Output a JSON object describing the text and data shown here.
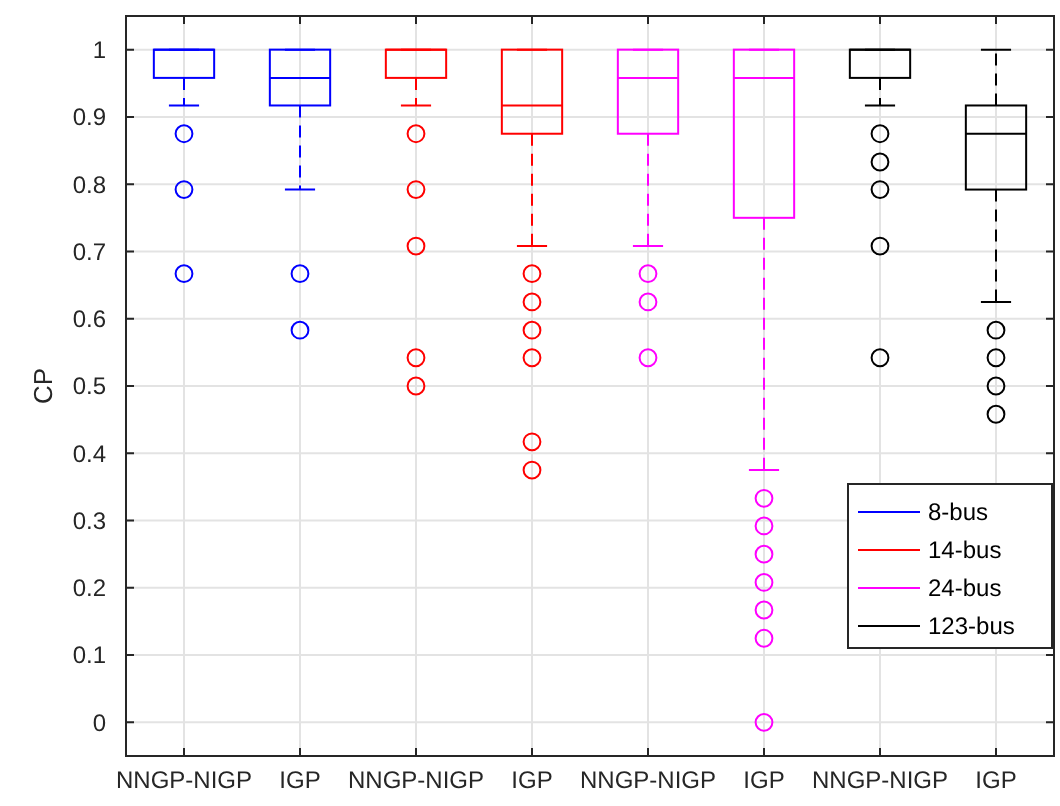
{
  "chart_data": {
    "type": "box",
    "ylabel": "CP",
    "categories": [
      "NNGP-NIGP",
      "IGP",
      "NNGP-NIGP",
      "IGP",
      "NNGP-NIGP",
      "IGP",
      "NNGP-NIGP",
      "IGP"
    ],
    "ylim": [
      -0.05,
      1.05
    ],
    "yticks": [
      0,
      0.1,
      0.2,
      0.3,
      0.4,
      0.5,
      0.6,
      0.7,
      0.8,
      0.9,
      1
    ],
    "grid": true,
    "legend": "bottom right",
    "marker": "circle",
    "series": [
      {
        "name": "8-bus",
        "color": "#0000ff",
        "boxes": [
          {
            "low": 0.917,
            "q1": 0.958,
            "median": 1,
            "q3": 1,
            "high": 1,
            "outliers": [
              0.875,
              0.792,
              0.667
            ]
          },
          {
            "low": 0.792,
            "q1": 0.917,
            "median": 0.958,
            "q3": 1,
            "high": 1,
            "outliers": [
              0.667,
              0.583
            ]
          },
          null,
          null,
          null,
          null,
          null,
          null
        ]
      },
      {
        "name": "14-bus",
        "color": "#ff0000",
        "boxes": [
          null,
          null,
          {
            "low": 0.917,
            "q1": 0.958,
            "median": 1,
            "q3": 1,
            "high": 1,
            "outliers": [
              0.875,
              0.792,
              0.708,
              0.542,
              0.5
            ]
          },
          {
            "low": 0.708,
            "q1": 0.875,
            "median": 0.917,
            "q3": 1,
            "high": 1,
            "outliers": [
              0.667,
              0.625,
              0.583,
              0.542,
              0.417,
              0.375
            ]
          },
          null,
          null,
          null,
          null
        ]
      },
      {
        "name": "24-bus",
        "color": "#ff00ff",
        "boxes": [
          null,
          null,
          null,
          null,
          {
            "low": 0.708,
            "q1": 0.875,
            "median": 0.958,
            "q3": 1,
            "high": 1,
            "outliers": [
              0.667,
              0.625,
              0.542
            ]
          },
          {
            "low": 0.375,
            "q1": 0.75,
            "median": 0.958,
            "q3": 1,
            "high": 1,
            "outliers": [
              0.333,
              0.292,
              0.25,
              0.208,
              0.167,
              0.125,
              0
            ]
          },
          null,
          null
        ]
      },
      {
        "name": "123-bus",
        "color": "#000000",
        "boxes": [
          null,
          null,
          null,
          null,
          null,
          null,
          {
            "low": 0.917,
            "q1": 0.958,
            "median": 1,
            "q3": 1,
            "high": 1,
            "outliers": [
              0.875,
              0.833,
              0.792,
              0.708,
              0.542
            ]
          },
          {
            "low": 0.625,
            "q1": 0.792,
            "median": 0.875,
            "q3": 0.917,
            "high": 1,
            "outliers": [
              0.583,
              0.542,
              0.5,
              0.458
            ]
          }
        ]
      }
    ]
  }
}
